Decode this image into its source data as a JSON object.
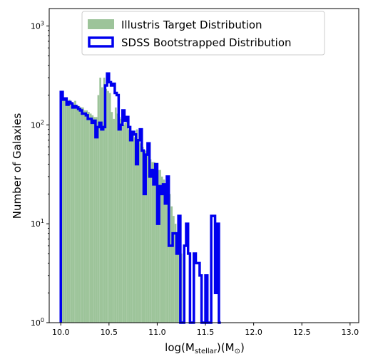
{
  "chart_data": {
    "type": "histogram",
    "xlabel": "log(M",
    "xlabel_sub": "stellar",
    "xlabel_tail": ")(M",
    "xlabel_sub2": "⊙",
    "xlabel_end": ")",
    "ylabel": "Number of Galaxies",
    "xlim": [
      9.88,
      13.09
    ],
    "ylim": [
      1,
      1500
    ],
    "yscale": "log",
    "x_ticks": [
      "10.0",
      "10.5",
      "11.0",
      "11.5",
      "12.0",
      "12.5",
      "13.0"
    ],
    "x_tick_values": [
      10.0,
      10.5,
      11.0,
      11.5,
      12.0,
      12.5,
      13.0
    ],
    "y_tick_values": [
      1,
      10,
      100,
      1000
    ],
    "y_ticks": [
      {
        "base": "10",
        "exp": "0"
      },
      {
        "base": "10",
        "exp": "1"
      },
      {
        "base": "10",
        "exp": "2"
      },
      {
        "base": "10",
        "exp": "3"
      }
    ],
    "legend_position": "top-center",
    "bin_start": 10.0,
    "bin_width": 0.02,
    "series": [
      {
        "name": "Illustris Target Distribution",
        "style": "filled",
        "color": "#9dc49a",
        "values": [
          210,
          175,
          190,
          175,
          180,
          170,
          165,
          175,
          160,
          155,
          150,
          150,
          140,
          140,
          135,
          130,
          125,
          120,
          120,
          200,
          300,
          240,
          300,
          230,
          220,
          210,
          135,
          115,
          150,
          130,
          120,
          115,
          100,
          105,
          110,
          90,
          85,
          80,
          75,
          90,
          70,
          65,
          60,
          55,
          55,
          50,
          45,
          42,
          42,
          40,
          35,
          35,
          30,
          28,
          25,
          22,
          20,
          15,
          12,
          10,
          8,
          7,
          5
        ]
      },
      {
        "name": "SDSS Bootstrapped Distribution",
        "style": "step",
        "color": "#0000ee",
        "values": [
          215,
          180,
          185,
          160,
          170,
          165,
          150,
          155,
          150,
          145,
          140,
          130,
          130,
          125,
          115,
          115,
          105,
          110,
          75,
          95,
          105,
          90,
          95,
          250,
          330,
          270,
          250,
          260,
          210,
          200,
          90,
          100,
          140,
          110,
          120,
          95,
          70,
          85,
          80,
          40,
          70,
          90,
          55,
          20,
          50,
          65,
          30,
          35,
          25,
          40,
          10,
          24,
          20,
          25,
          16,
          30,
          6,
          6,
          8,
          8,
          5,
          12,
          1,
          1,
          6,
          10,
          5,
          1,
          1,
          5,
          4,
          4,
          3,
          1,
          1,
          3,
          1,
          1,
          12,
          12,
          2,
          10,
          1
        ]
      }
    ]
  }
}
